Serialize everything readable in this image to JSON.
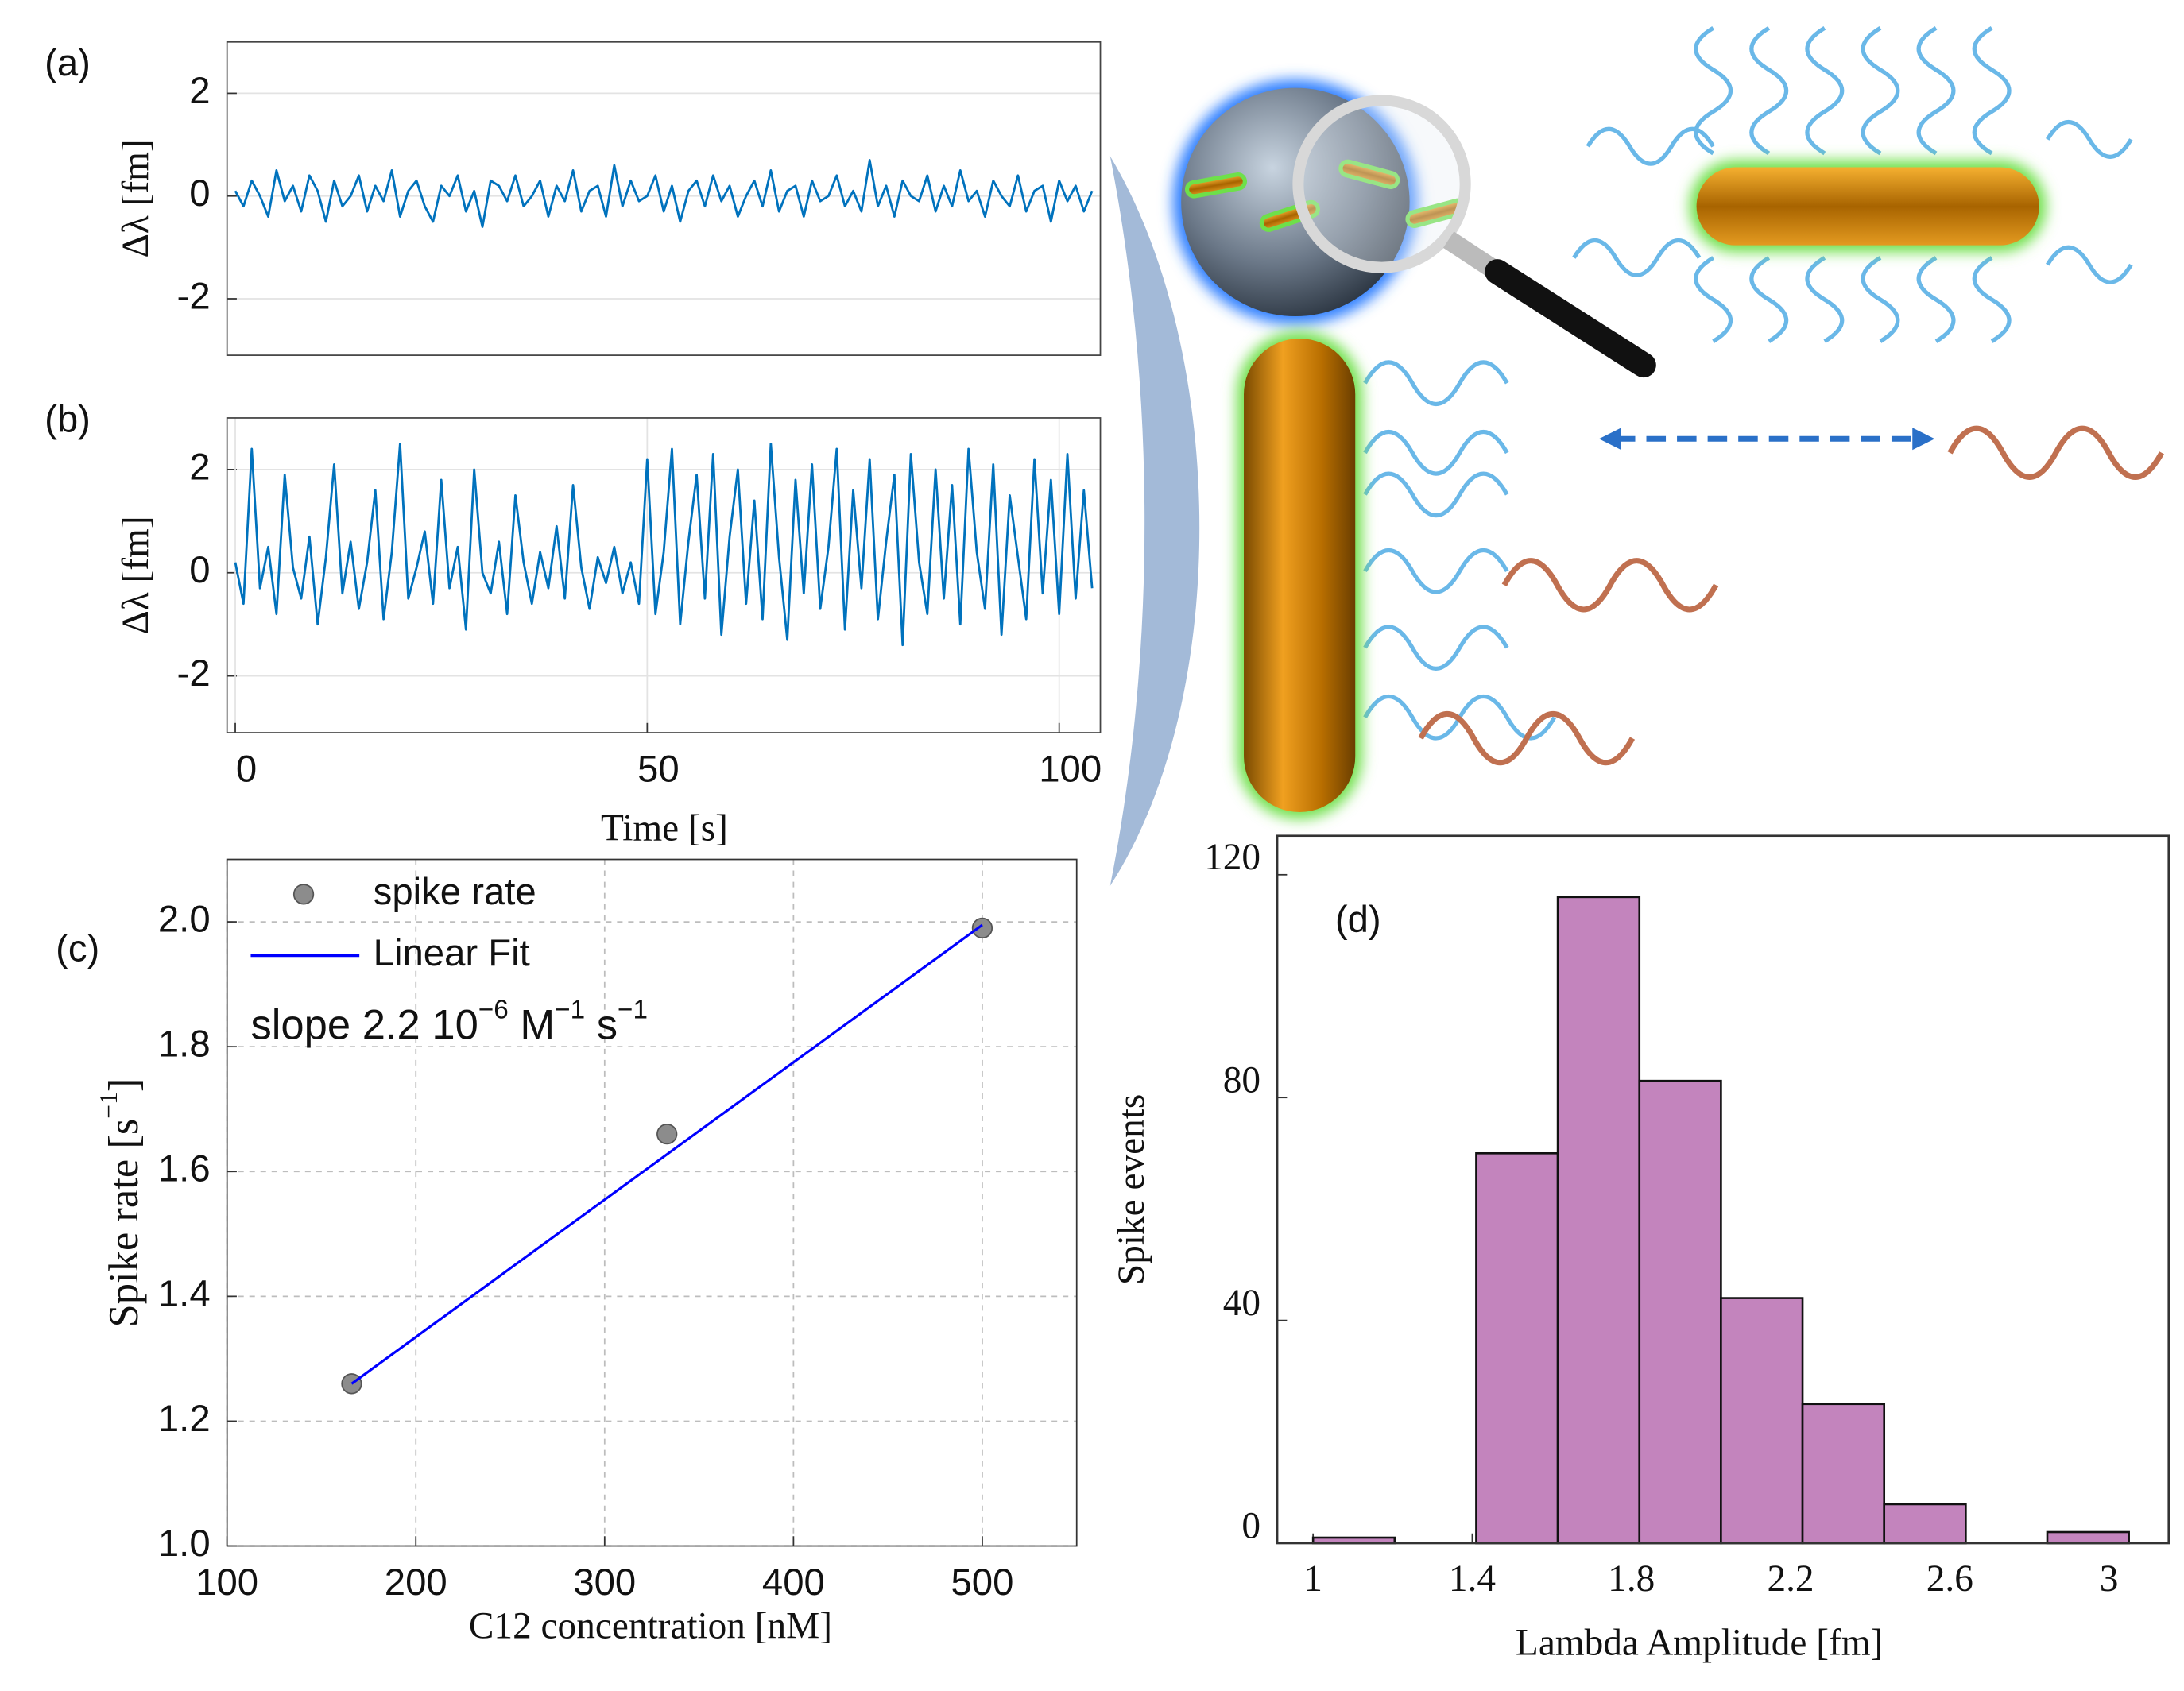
{
  "chart_data": [
    {
      "type": "line",
      "label": "(a)",
      "y_label": "Δλ [fm]",
      "color": "#0072bd",
      "grid": true,
      "xlim": [
        -1,
        105
      ],
      "ylim": [
        -3.1,
        3
      ],
      "yticks": [
        -2,
        0,
        2
      ],
      "x": [
        0,
        1,
        2,
        3,
        4,
        5,
        6,
        7,
        8,
        9,
        10,
        11,
        12,
        13,
        14,
        15,
        16,
        17,
        18,
        19,
        20,
        21,
        22,
        23,
        24,
        25,
        26,
        27,
        28,
        29,
        30,
        31,
        32,
        33,
        34,
        35,
        36,
        37,
        38,
        39,
        40,
        41,
        42,
        43,
        44,
        45,
        46,
        47,
        48,
        49,
        50,
        51,
        52,
        53,
        54,
        55,
        56,
        57,
        58,
        59,
        60,
        61,
        62,
        63,
        64,
        65,
        66,
        67,
        68,
        69,
        70,
        71,
        72,
        73,
        74,
        75,
        76,
        77,
        78,
        79,
        80,
        81,
        82,
        83,
        84,
        85,
        86,
        87,
        88,
        89,
        90,
        91,
        92,
        93,
        94,
        95,
        96,
        97,
        98,
        99,
        100,
        101,
        102,
        103,
        104
      ],
      "values": [
        0.1,
        -0.2,
        0.3,
        0.0,
        -0.4,
        0.5,
        -0.1,
        0.2,
        -0.3,
        0.4,
        0.1,
        -0.5,
        0.3,
        -0.2,
        0.0,
        0.4,
        -0.3,
        0.2,
        -0.1,
        0.5,
        -0.4,
        0.1,
        0.3,
        -0.2,
        -0.5,
        0.2,
        0.0,
        0.4,
        -0.3,
        0.1,
        -0.6,
        0.3,
        0.2,
        -0.1,
        0.4,
        -0.2,
        0.0,
        0.3,
        -0.4,
        0.2,
        -0.1,
        0.5,
        -0.3,
        0.1,
        0.2,
        -0.4,
        0.6,
        -0.2,
        0.3,
        -0.1,
        0.0,
        0.4,
        -0.3,
        0.2,
        -0.5,
        0.1,
        0.3,
        -0.2,
        0.4,
        -0.1,
        0.2,
        -0.4,
        0.0,
        0.3,
        -0.2,
        0.5,
        -0.3,
        0.1,
        0.2,
        -0.4,
        0.3,
        -0.1,
        0.0,
        0.4,
        -0.2,
        0.1,
        -0.3,
        0.7,
        -0.2,
        0.2,
        -0.4,
        0.3,
        0.0,
        -0.1,
        0.4,
        -0.3,
        0.2,
        -0.2,
        0.5,
        -0.1,
        0.1,
        -0.4,
        0.3,
        0.0,
        -0.2,
        0.4,
        -0.3,
        0.1,
        0.2,
        -0.5,
        0.3,
        -0.1,
        0.2,
        -0.3,
        0.1
      ]
    },
    {
      "type": "line",
      "label": "(b)",
      "y_label": "Δλ [fm]",
      "x_label": "Time [s]",
      "color": "#0072bd",
      "grid": true,
      "xlim": [
        -1,
        105
      ],
      "ylim": [
        -3.1,
        3
      ],
      "xticks": [
        0,
        50,
        100
      ],
      "yticks": [
        -2,
        0,
        2
      ],
      "x": [
        0,
        1,
        2,
        3,
        4,
        5,
        6,
        7,
        8,
        9,
        10,
        11,
        12,
        13,
        14,
        15,
        16,
        17,
        18,
        19,
        20,
        21,
        22,
        23,
        24,
        25,
        26,
        27,
        28,
        29,
        30,
        31,
        32,
        33,
        34,
        35,
        36,
        37,
        38,
        39,
        40,
        41,
        42,
        43,
        44,
        45,
        46,
        47,
        48,
        49,
        50,
        51,
        52,
        53,
        54,
        55,
        56,
        57,
        58,
        59,
        60,
        61,
        62,
        63,
        64,
        65,
        66,
        67,
        68,
        69,
        70,
        71,
        72,
        73,
        74,
        75,
        76,
        77,
        78,
        79,
        80,
        81,
        82,
        83,
        84,
        85,
        86,
        87,
        88,
        89,
        90,
        91,
        92,
        93,
        94,
        95,
        96,
        97,
        98,
        99,
        100,
        101,
        102,
        103,
        104
      ],
      "values": [
        0.2,
        -0.6,
        2.4,
        -0.3,
        0.5,
        -0.8,
        1.9,
        0.1,
        -0.5,
        0.7,
        -1.0,
        0.3,
        2.1,
        -0.4,
        0.6,
        -0.7,
        0.2,
        1.6,
        -0.9,
        0.4,
        2.5,
        -0.5,
        0.1,
        0.8,
        -0.6,
        1.8,
        -0.3,
        0.5,
        -1.1,
        2.0,
        0.0,
        -0.4,
        0.6,
        -0.8,
        1.5,
        0.2,
        -0.6,
        0.4,
        -0.3,
        0.9,
        -0.5,
        1.7,
        0.1,
        -0.7,
        0.3,
        -0.2,
        0.5,
        -0.4,
        0.2,
        -0.6,
        2.2,
        -0.8,
        0.4,
        2.4,
        -1.0,
        0.6,
        1.9,
        -0.5,
        2.3,
        -1.2,
        0.7,
        2.0,
        -0.6,
        1.4,
        -0.9,
        2.5,
        0.3,
        -1.3,
        1.8,
        -0.4,
        2.1,
        -0.7,
        0.5,
        2.4,
        -1.1,
        1.6,
        -0.3,
        2.2,
        -0.9,
        0.6,
        1.9,
        -1.4,
        2.3,
        0.2,
        -0.8,
        2.0,
        -0.5,
        1.7,
        -1.0,
        2.4,
        0.4,
        -0.7,
        2.1,
        -1.2,
        1.5,
        0.3,
        -0.9,
        2.2,
        -0.4,
        1.8,
        -0.8,
        2.3,
        -0.5,
        1.6,
        -0.3
      ]
    },
    {
      "type": "scatter",
      "label": "(c)",
      "x_label": "C12 concentration [nM]",
      "y_label": [
        "Spike rate [s",
        "−1",
        "]"
      ],
      "annotation": [
        "slope 2.2 10",
        "−6",
        " M",
        "−1",
        " s",
        "−1"
      ],
      "grid": true,
      "grid_style": "dashed",
      "xlim": [
        100,
        550
      ],
      "ylim": [
        1.0,
        2.1
      ],
      "xticks": [
        100,
        200,
        300,
        400,
        500
      ],
      "yticks": [
        {
          "value": 1.0,
          "label": "1.0"
        },
        1.2,
        1.4,
        1.6,
        1.8,
        {
          "value": 2.0,
          "label": "2.0"
        }
      ],
      "series": [
        {
          "name": "spike rate",
          "kind": "points",
          "color": "#8c8c8c",
          "x": [
            166,
            333,
            500
          ],
          "values": [
            1.26,
            1.66,
            1.99
          ]
        },
        {
          "name": "Linear Fit",
          "kind": "line",
          "color": "#0000ff",
          "x": [
            166,
            500
          ],
          "values": [
            1.26,
            1.995
          ]
        }
      ]
    },
    {
      "type": "histogram",
      "label": "(d)",
      "x_label": "Lambda Amplitude [fm]",
      "y_label": "Spike events",
      "color": "#c384bd",
      "xlim": [
        0.91,
        3.15
      ],
      "ylim": [
        0,
        127
      ],
      "xticks": [
        1,
        1.4,
        1.8,
        2.2,
        2.6,
        3
      ],
      "yticks": [
        0,
        40,
        80,
        120
      ],
      "bins": [
        1.0,
        1.205,
        1.41,
        1.615,
        1.82,
        2.025,
        2.23,
        2.435,
        2.64,
        2.845,
        3.05
      ],
      "values": [
        1,
        0,
        70,
        116,
        83,
        44,
        25,
        7,
        0,
        2
      ]
    }
  ]
}
